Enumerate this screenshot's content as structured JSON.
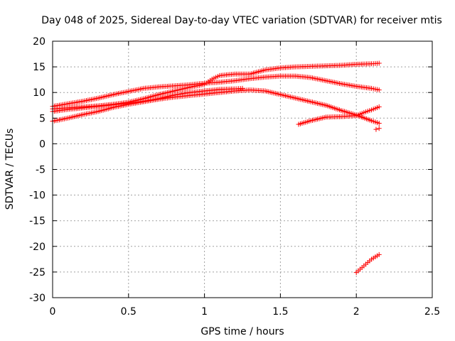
{
  "chart_data": {
    "type": "scatter",
    "title": "Day 048 of 2025, Sidereal Day-to-day VTEC variation (SDTVAR) for receiver mtis",
    "xlabel": "GPS time / hours",
    "ylabel": "SDTVAR / TECUs",
    "xlim": [
      0,
      2.5
    ],
    "ylim": [
      -30,
      20
    ],
    "xticks": [
      0,
      0.5,
      1,
      1.5,
      2,
      2.5
    ],
    "xtick_labels": [
      "0",
      "0.5",
      "1",
      "1.5",
      "2",
      "2.5"
    ],
    "yticks": [
      -30,
      -25,
      -20,
      -15,
      -10,
      -5,
      0,
      5,
      10,
      15,
      20
    ],
    "ytick_labels": [
      "-30",
      "-25",
      "-20",
      "-15",
      "-10",
      "-5",
      "0",
      "5",
      "10",
      "15",
      "20"
    ],
    "grid": true,
    "marker": "plus",
    "color": "#ff0000",
    "series": [
      {
        "x": [
          0.0,
          0.1,
          0.2,
          0.3,
          0.4,
          0.5,
          0.6,
          0.7,
          0.8,
          0.9,
          1.0,
          1.1,
          1.2,
          1.3,
          1.4,
          1.5,
          1.6,
          1.7,
          1.8,
          1.9,
          2.0,
          2.1,
          2.15
        ],
        "y": [
          7.3,
          7.8,
          8.3,
          8.9,
          9.6,
          10.2,
          10.8,
          11.1,
          11.3,
          11.5,
          11.8,
          12.0,
          12.3,
          12.7,
          13.0,
          13.2,
          13.2,
          12.9,
          12.3,
          11.7,
          11.2,
          10.8,
          10.5
        ]
      },
      {
        "x": [
          0.0,
          0.1,
          0.2,
          0.3,
          0.4,
          0.5,
          0.6,
          0.7,
          0.8,
          0.9,
          1.0,
          1.05,
          1.1,
          1.2,
          1.3,
          1.4,
          1.5,
          1.6,
          1.7,
          1.8,
          1.9,
          2.0,
          2.1,
          2.15
        ],
        "y": [
          6.8,
          7.0,
          7.2,
          7.4,
          7.7,
          8.1,
          8.8,
          9.6,
          10.3,
          11.0,
          11.6,
          12.6,
          13.3,
          13.6,
          13.6,
          14.4,
          14.8,
          15.0,
          15.1,
          15.2,
          15.3,
          15.5,
          15.6,
          15.7
        ]
      },
      {
        "x": [
          0.0,
          0.1,
          0.2,
          0.3,
          0.4,
          0.5,
          0.6,
          0.7,
          0.8,
          0.9,
          1.0,
          1.1,
          1.2,
          1.3,
          1.4,
          1.5,
          1.6,
          1.7,
          1.8,
          1.9,
          2.0,
          2.1,
          2.15
        ],
        "y": [
          4.4,
          5.0,
          5.7,
          6.3,
          7.1,
          7.7,
          8.2,
          8.7,
          9.1,
          9.4,
          9.7,
          10.0,
          10.3,
          10.5,
          10.3,
          9.6,
          8.9,
          8.2,
          7.5,
          6.5,
          5.6,
          4.5,
          4.0
        ]
      },
      {
        "x": [
          0.0,
          0.1,
          0.2,
          0.3,
          0.4,
          0.5,
          0.6,
          0.7,
          0.8,
          0.9,
          1.0,
          1.1,
          1.2,
          1.25
        ],
        "y": [
          6.3,
          6.7,
          7.0,
          7.3,
          7.6,
          7.9,
          8.3,
          8.8,
          9.5,
          10.0,
          10.3,
          10.6,
          10.7,
          10.8
        ]
      },
      {
        "x": [
          1.62,
          1.7,
          1.8,
          1.9,
          2.0,
          2.05,
          2.1,
          2.15
        ],
        "y": [
          3.8,
          4.5,
          5.2,
          5.3,
          5.5,
          6.1,
          6.6,
          7.2
        ]
      },
      {
        "x": [
          2.13,
          2.15
        ],
        "y": [
          2.8,
          3.0
        ]
      },
      {
        "x": [
          2.0,
          2.05,
          2.1,
          2.15
        ],
        "y": [
          -25.1,
          -23.8,
          -22.5,
          -21.6
        ]
      }
    ]
  }
}
